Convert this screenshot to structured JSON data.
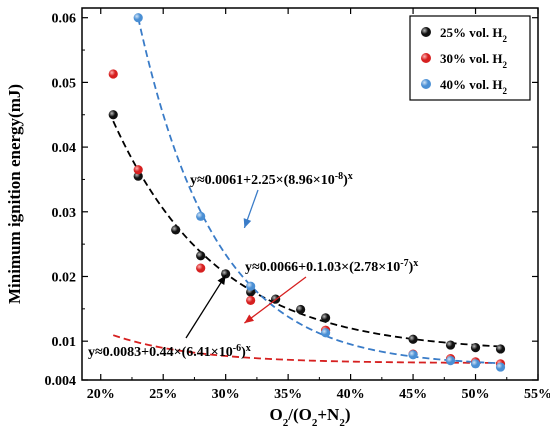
{
  "chart_data": {
    "type": "scatter",
    "title": "",
    "xlabel": {
      "text": "O",
      "sub1": "2",
      "mid": "/(O",
      "sub2": "2",
      "mid2": "+N",
      "sub3": "2",
      "end": ")"
    },
    "ylabel": "Minimum ignition energy(mJ)",
    "xlim": [
      0.185,
      0.55
    ],
    "ylim": [
      0.004,
      0.0615
    ],
    "grid": false,
    "legend_position": "top-right",
    "x_ticks": [
      {
        "value": 0.2,
        "label": "20%"
      },
      {
        "value": 0.25,
        "label": "25%"
      },
      {
        "value": 0.3,
        "label": "30%"
      },
      {
        "value": 0.35,
        "label": "35%"
      },
      {
        "value": 0.4,
        "label": "40%"
      },
      {
        "value": 0.45,
        "label": "45%"
      },
      {
        "value": 0.5,
        "label": "50%"
      },
      {
        "value": 0.55,
        "label": "55%"
      }
    ],
    "y_ticks": [
      {
        "value": 0.004,
        "label": "0.004"
      },
      {
        "value": 0.01,
        "label": "0.01"
      },
      {
        "value": 0.02,
        "label": "0.02"
      },
      {
        "value": 0.03,
        "label": "0.03"
      },
      {
        "value": 0.04,
        "label": "0.04"
      },
      {
        "value": 0.05,
        "label": "0.05"
      },
      {
        "value": 0.06,
        "label": "0.06"
      }
    ],
    "series": [
      {
        "name": "25% vol. H",
        "name_sub": "2",
        "color": "#111111",
        "highlight": "#bbbbbb",
        "x": [
          0.21,
          0.23,
          0.26,
          0.28,
          0.3,
          0.32,
          0.34,
          0.36,
          0.38,
          0.45,
          0.48,
          0.5,
          0.52
        ],
        "y": [
          0.045,
          0.0355,
          0.0272,
          0.0232,
          0.0204,
          0.0176,
          0.0165,
          0.0149,
          0.0136,
          0.0103,
          0.0094,
          0.009,
          0.0088
        ],
        "fit": {
          "a": 0.0083,
          "b": 0.44,
          "c": 6.41e-06,
          "dash": "#000000",
          "x_range": [
            0.21,
            0.52
          ]
        }
      },
      {
        "name": "30% vol. H",
        "name_sub": "2",
        "color": "#d62020",
        "highlight": "#ffb3b3",
        "x": [
          0.21,
          0.23,
          0.28,
          0.32,
          0.38,
          0.45,
          0.48,
          0.5,
          0.52
        ],
        "y": [
          0.0513,
          0.0365,
          0.0213,
          0.0163,
          0.0117,
          0.008,
          0.0073,
          0.0068,
          0.0065
        ],
        "fit": {
          "a": 0.0066,
          "b": 0.103,
          "c": 2.78e-07,
          "dash": "#d62020",
          "x_range": [
            0.21,
            0.52
          ]
        }
      },
      {
        "name": "40% vol. H",
        "name_sub": "2",
        "color": "#4a8fd4",
        "highlight": "#cfe3f7",
        "x": [
          0.23,
          0.28,
          0.32,
          0.38,
          0.45,
          0.48,
          0.5,
          0.52
        ],
        "y": [
          0.06,
          0.0293,
          0.0185,
          0.0113,
          0.0079,
          0.007,
          0.0065,
          0.006
        ],
        "fit": {
          "a": 0.0061,
          "b": 2.25,
          "c": 8.96e-08,
          "dash": "#3a7cc8",
          "x_range": [
            0.23,
            0.52
          ]
        }
      }
    ],
    "annotations": [
      {
        "base": "y≈0.0061+2.25×(8.96×10",
        "exp": "-8",
        "tail": ")",
        "power": "x",
        "color": "#3a7cc8",
        "arrow_to": [
          0.315,
          0.0275
        ]
      },
      {
        "base": "y≈0.0066+0.1.03×(2.78×10",
        "exp": "-7",
        "tail": ")",
        "power": "x",
        "color": "#d62020",
        "arrow_to": [
          0.315,
          0.0128
        ]
      },
      {
        "base": "y≈0.0083+0.44×(6.41×10",
        "exp": "-6",
        "tail": ")",
        "power": "x",
        "color": "#000000",
        "arrow_to": [
          0.3,
          0.0202
        ]
      }
    ]
  }
}
